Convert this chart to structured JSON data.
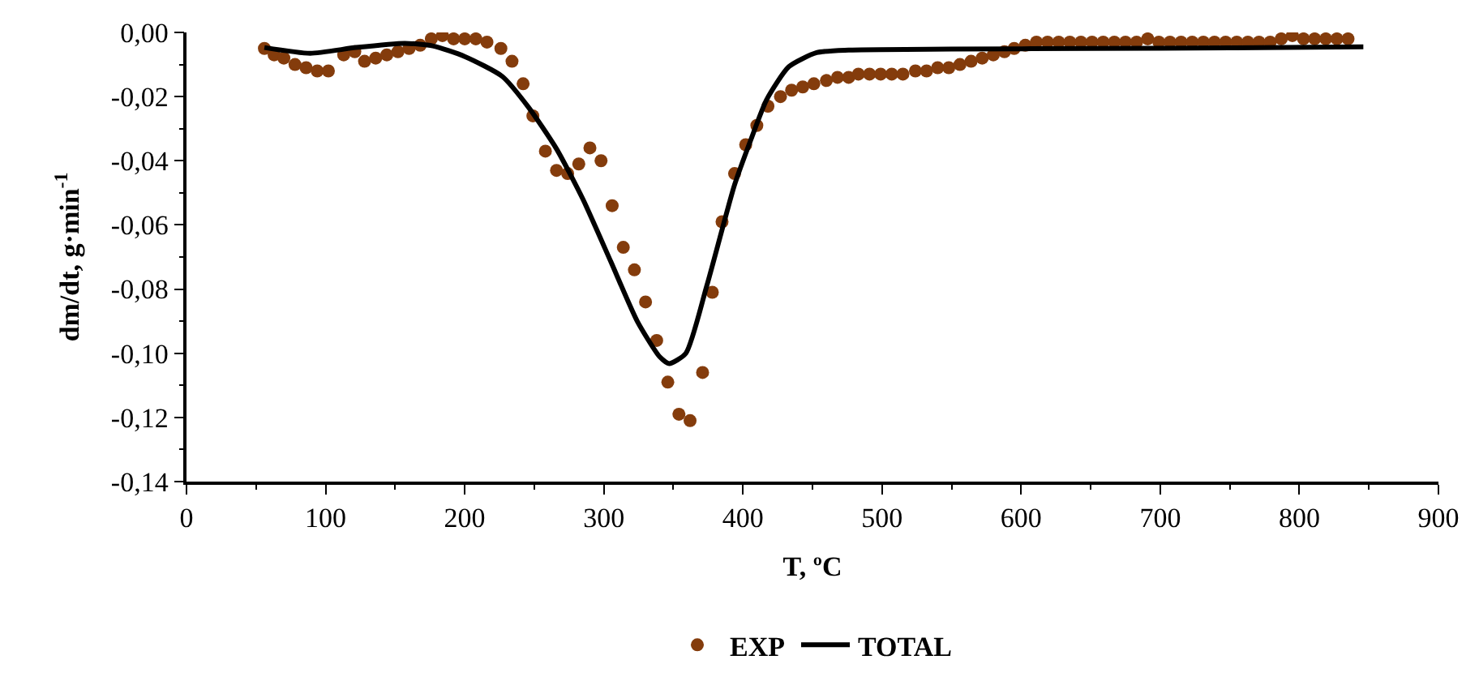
{
  "chart_data": {
    "type": "scatter",
    "xlabel": "T, ºC",
    "ylabel": "dm/dt, g·min$^{-1}$",
    "xlim": [
      0,
      900
    ],
    "xticks": [
      0,
      100,
      200,
      300,
      400,
      500,
      600,
      700,
      800,
      900
    ],
    "ylim": [
      -0.14,
      0
    ],
    "yticks": [
      {
        "value": 0,
        "label": "0,00"
      },
      {
        "value": -0.02,
        "label": "-0,02"
      },
      {
        "value": -0.04,
        "label": "-0,04"
      },
      {
        "value": -0.06,
        "label": "-0,06"
      },
      {
        "value": -0.08,
        "label": "-0,08"
      },
      {
        "value": -0.1,
        "label": "-0,10"
      },
      {
        "value": -0.12,
        "label": "-0,12"
      },
      {
        "value": -0.14,
        "label": "-0,14"
      }
    ],
    "grid": false,
    "legend": "bottom",
    "series": [
      {
        "name": "EXP",
        "marker": "circle",
        "color": "#843c0c",
        "x": [
          56,
          63,
          70,
          78,
          86,
          94,
          102,
          113,
          121,
          128,
          136,
          144,
          152,
          160,
          168,
          176,
          184,
          192,
          200,
          208,
          216,
          226,
          234,
          242,
          249,
          258,
          266,
          274,
          282,
          290,
          298,
          306,
          314,
          322,
          330,
          338,
          346,
          354,
          362,
          371,
          378,
          385,
          394,
          402,
          410,
          418,
          427,
          435,
          443,
          451,
          460,
          468,
          476,
          483,
          491,
          499,
          507,
          515,
          524,
          532,
          540,
          548,
          556,
          564,
          572,
          580,
          588,
          595,
          603,
          611,
          619,
          627,
          635,
          643,
          651,
          659,
          667,
          675,
          683,
          691,
          699,
          707,
          715,
          723,
          731,
          739,
          747,
          755,
          763,
          771,
          779,
          787,
          795,
          803,
          811,
          819,
          827,
          835
        ],
        "values": [
          -0.005,
          -0.007,
          -0.008,
          -0.01,
          -0.011,
          -0.012,
          -0.012,
          -0.007,
          -0.006,
          -0.009,
          -0.008,
          -0.007,
          -0.006,
          -0.005,
          -0.004,
          -0.002,
          -0.001,
          -0.002,
          -0.002,
          -0.002,
          -0.003,
          -0.005,
          -0.009,
          -0.016,
          -0.026,
          -0.037,
          -0.043,
          -0.044,
          -0.041,
          -0.036,
          -0.04,
          -0.054,
          -0.067,
          -0.074,
          -0.084,
          -0.096,
          -0.109,
          -0.119,
          -0.121,
          -0.106,
          -0.081,
          -0.059,
          -0.044,
          -0.035,
          -0.029,
          -0.023,
          -0.02,
          -0.018,
          -0.017,
          -0.016,
          -0.015,
          -0.014,
          -0.014,
          -0.013,
          -0.013,
          -0.013,
          -0.013,
          -0.013,
          -0.012,
          -0.012,
          -0.011,
          -0.011,
          -0.01,
          -0.009,
          -0.008,
          -0.007,
          -0.006,
          -0.005,
          -0.004,
          -0.003,
          -0.003,
          -0.003,
          -0.003,
          -0.003,
          -0.003,
          -0.003,
          -0.003,
          -0.003,
          -0.003,
          -0.002,
          -0.003,
          -0.003,
          -0.003,
          -0.003,
          -0.003,
          -0.003,
          -0.003,
          -0.003,
          -0.003,
          -0.003,
          -0.003,
          -0.002,
          -0.001,
          -0.002,
          -0.002,
          -0.002,
          -0.002,
          -0.002
        ]
      },
      {
        "name": "TOTAL",
        "type": "line",
        "marker": "none",
        "line_style": "solid",
        "color": "#000000",
        "x": [
          56,
          89,
          122,
          157,
          177,
          200,
          227,
          246,
          266,
          285,
          305,
          324,
          340,
          347,
          359,
          374,
          394,
          406,
          417,
          433,
          453,
          476,
          550,
          650,
          750,
          846
        ],
        "values": [
          -0.0047,
          -0.0065,
          -0.0047,
          -0.0034,
          -0.0042,
          -0.0075,
          -0.0137,
          -0.0234,
          -0.0363,
          -0.052,
          -0.0714,
          -0.09,
          -0.101,
          -0.1032,
          -0.1,
          -0.079,
          -0.0475,
          -0.0331,
          -0.021,
          -0.0107,
          -0.0063,
          -0.0055,
          -0.0052,
          -0.005,
          -0.0048,
          -0.0045
        ]
      }
    ]
  }
}
